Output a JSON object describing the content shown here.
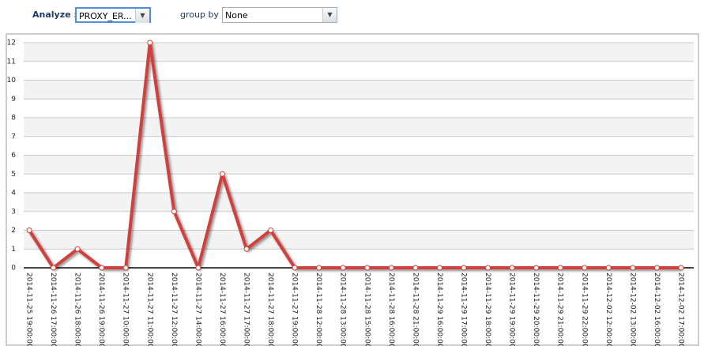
{
  "controls": {
    "analyze_label": "Analyze :",
    "analyze_value": "PROXY_ER...",
    "group_by_label": "group by :",
    "group_by_value": "None"
  },
  "chart_data": {
    "type": "line",
    "categories": [
      "2014-11-25 19:00:00",
      "2014-11-26 17:00:00",
      "2014-11-26 18:00:00",
      "2014-11-26 19:00:00",
      "2014-11-27 10:00:00",
      "2014-11-27 11:00:00",
      "2014-11-27 12:00:00",
      "2014-11-27 14:00:00",
      "2014-11-27 16:00:00",
      "2014-11-27 17:00:00",
      "2014-11-27 18:00:00",
      "2014-11-27 19:00:00",
      "2014-11-28 12:00:00",
      "2014-11-28 13:00:00",
      "2014-11-28 15:00:00",
      "2014-11-28 16:00:00",
      "2014-11-28 21:00:00",
      "2014-11-29 16:00:00",
      "2014-11-29 17:00:00",
      "2014-11-29 18:00:00",
      "2014-11-29 19:00:00",
      "2014-11-29 20:00:00",
      "2014-11-29 21:00:00",
      "2014-11-29 22:00:00",
      "2014-12-02 12:00:00",
      "2014-12-02 13:00:00",
      "2014-12-02 16:00:00",
      "2014-12-02 17:00:00"
    ],
    "values": [
      2,
      0,
      1,
      0,
      0,
      12,
      3,
      0,
      5,
      1,
      2,
      0,
      0,
      0,
      0,
      0,
      0,
      0,
      0,
      0,
      0,
      0,
      0,
      0,
      0,
      0,
      0,
      0
    ],
    "color": "#d0413c",
    "ylim": [
      0,
      12
    ],
    "yticks": [
      0,
      1,
      2,
      3,
      4,
      5,
      6,
      7,
      8,
      9,
      10,
      11,
      12
    ],
    "grid": true
  }
}
